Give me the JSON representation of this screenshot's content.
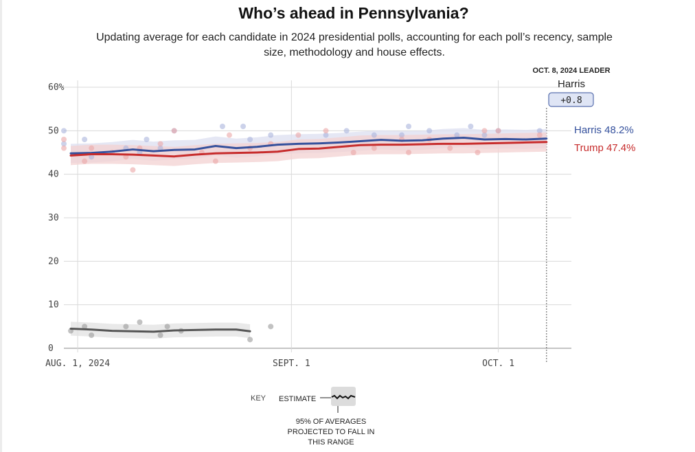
{
  "title": "Who’s ahead in Pennsylvania?",
  "subtitle": "Updating average for each candidate in 2024 presidential polls, accounting for each poll’s recency, sample size, methodology and house effects.",
  "leader_box": {
    "date_label": "OCT. 8, 2024 LEADER",
    "name": "Harris",
    "margin": "+0.8"
  },
  "colors": {
    "harris": "#34509c",
    "trump": "#c72c2c",
    "other": "#555555",
    "harris_band": "#dcdff0",
    "trump_band": "#f3d1d1",
    "other_band": "#e2e2e2",
    "grid": "#d9d9d9",
    "badge_bg": "#dfe5f5",
    "badge_border": "#34509c"
  },
  "key": {
    "key_label": "KEY",
    "estimate_label": "ESTIMATE",
    "range_label_line1": "95% OF AVERAGES",
    "range_label_line2": "PROJECTED TO FALL IN",
    "range_label_line3": "THIS RANGE"
  },
  "chart_data": {
    "type": "line",
    "title": "Who’s ahead in Pennsylvania?",
    "xlabel": "",
    "ylabel": "",
    "x_domain": [
      "2024-07-30",
      "2024-10-12"
    ],
    "ylim": [
      0,
      60
    ],
    "y_ticks": [
      0,
      10,
      20,
      30,
      40,
      50,
      60
    ],
    "y_tick_labels": [
      "0",
      "10",
      "20",
      "30",
      "40",
      "50",
      "60%"
    ],
    "x_ticks": [
      {
        "date": "2024-08-01",
        "label": "AUG. 1, 2024"
      },
      {
        "date": "2024-09-01",
        "label": "SEPT. 1"
      },
      {
        "date": "2024-10-01",
        "label": "OCT. 1"
      }
    ],
    "marker_date": "2024-10-08",
    "series": [
      {
        "name": "Harris",
        "end_label": "Harris 48.2%",
        "final_value": 48.2,
        "band_halfwidth": 2.2,
        "points": [
          [
            "2024-07-31",
            44.8
          ],
          [
            "2024-08-03",
            44.9
          ],
          [
            "2024-08-06",
            45.2
          ],
          [
            "2024-08-09",
            45.7
          ],
          [
            "2024-08-12",
            45.3
          ],
          [
            "2024-08-15",
            45.6
          ],
          [
            "2024-08-18",
            45.7
          ],
          [
            "2024-08-21",
            46.5
          ],
          [
            "2024-08-24",
            46.0
          ],
          [
            "2024-08-27",
            46.3
          ],
          [
            "2024-08-30",
            46.8
          ],
          [
            "2024-09-02",
            47.0
          ],
          [
            "2024-09-05",
            47.1
          ],
          [
            "2024-09-08",
            47.3
          ],
          [
            "2024-09-11",
            47.6
          ],
          [
            "2024-09-14",
            47.9
          ],
          [
            "2024-09-17",
            47.7
          ],
          [
            "2024-09-20",
            47.8
          ],
          [
            "2024-09-23",
            48.2
          ],
          [
            "2024-09-26",
            48.4
          ],
          [
            "2024-09-29",
            48.0
          ],
          [
            "2024-10-02",
            48.1
          ],
          [
            "2024-10-05",
            48.0
          ],
          [
            "2024-10-08",
            48.2
          ]
        ]
      },
      {
        "name": "Trump",
        "end_label": "Trump 47.4%",
        "final_value": 47.4,
        "band_halfwidth": 2.2,
        "points": [
          [
            "2024-07-31",
            44.3
          ],
          [
            "2024-08-03",
            44.6
          ],
          [
            "2024-08-06",
            44.6
          ],
          [
            "2024-08-09",
            44.5
          ],
          [
            "2024-08-12",
            44.3
          ],
          [
            "2024-08-15",
            44.1
          ],
          [
            "2024-08-18",
            44.5
          ],
          [
            "2024-08-21",
            44.8
          ],
          [
            "2024-08-24",
            44.9
          ],
          [
            "2024-08-27",
            45.0
          ],
          [
            "2024-08-30",
            45.2
          ],
          [
            "2024-09-02",
            45.8
          ],
          [
            "2024-09-05",
            45.9
          ],
          [
            "2024-09-08",
            46.3
          ],
          [
            "2024-09-11",
            46.7
          ],
          [
            "2024-09-14",
            46.8
          ],
          [
            "2024-09-17",
            46.8
          ],
          [
            "2024-09-20",
            46.9
          ],
          [
            "2024-09-23",
            47.0
          ],
          [
            "2024-09-26",
            47.0
          ],
          [
            "2024-09-29",
            47.1
          ],
          [
            "2024-10-02",
            47.2
          ],
          [
            "2024-10-05",
            47.3
          ],
          [
            "2024-10-08",
            47.4
          ]
        ]
      },
      {
        "name": "Other",
        "end_label": "",
        "band_halfwidth": 1.6,
        "points": [
          [
            "2024-07-31",
            4.5
          ],
          [
            "2024-08-03",
            4.3
          ],
          [
            "2024-08-06",
            4.0
          ],
          [
            "2024-08-09",
            3.9
          ],
          [
            "2024-08-12",
            3.8
          ],
          [
            "2024-08-15",
            4.1
          ],
          [
            "2024-08-18",
            4.2
          ],
          [
            "2024-08-21",
            4.3
          ],
          [
            "2024-08-24",
            4.3
          ],
          [
            "2024-08-26",
            3.9
          ]
        ]
      }
    ],
    "polls": [
      {
        "series": "Harris",
        "points": [
          [
            "2024-07-30",
            50
          ],
          [
            "2024-07-30",
            47
          ],
          [
            "2024-08-02",
            48
          ],
          [
            "2024-08-03",
            44
          ],
          [
            "2024-08-08",
            46
          ],
          [
            "2024-08-10",
            45
          ],
          [
            "2024-08-11",
            48
          ],
          [
            "2024-08-13",
            46
          ],
          [
            "2024-08-15",
            50
          ],
          [
            "2024-08-22",
            51
          ],
          [
            "2024-08-25",
            51
          ],
          [
            "2024-08-26",
            48
          ],
          [
            "2024-08-29",
            49
          ],
          [
            "2024-09-06",
            49
          ],
          [
            "2024-09-09",
            50
          ],
          [
            "2024-09-13",
            49
          ],
          [
            "2024-09-17",
            49
          ],
          [
            "2024-09-18",
            51
          ],
          [
            "2024-09-21",
            50
          ],
          [
            "2024-09-25",
            49
          ],
          [
            "2024-09-27",
            51
          ],
          [
            "2024-09-29",
            49
          ],
          [
            "2024-10-01",
            50
          ],
          [
            "2024-10-07",
            50
          ]
        ]
      },
      {
        "series": "Trump",
        "points": [
          [
            "2024-07-30",
            48
          ],
          [
            "2024-07-30",
            46
          ],
          [
            "2024-08-02",
            43
          ],
          [
            "2024-08-03",
            46
          ],
          [
            "2024-08-06",
            45
          ],
          [
            "2024-08-08",
            44
          ],
          [
            "2024-08-09",
            41
          ],
          [
            "2024-08-10",
            46
          ],
          [
            "2024-08-13",
            47
          ],
          [
            "2024-08-15",
            50
          ],
          [
            "2024-08-19",
            45
          ],
          [
            "2024-08-21",
            43
          ],
          [
            "2024-08-23",
            49
          ],
          [
            "2024-08-26",
            46
          ],
          [
            "2024-08-29",
            47
          ],
          [
            "2024-09-02",
            49
          ],
          [
            "2024-09-06",
            50
          ],
          [
            "2024-09-10",
            45
          ],
          [
            "2024-09-13",
            46
          ],
          [
            "2024-09-17",
            48
          ],
          [
            "2024-09-18",
            45
          ],
          [
            "2024-09-21",
            48
          ],
          [
            "2024-09-24",
            46
          ],
          [
            "2024-09-28",
            45
          ],
          [
            "2024-09-29",
            50
          ],
          [
            "2024-10-01",
            50
          ],
          [
            "2024-10-07",
            49
          ]
        ]
      },
      {
        "series": "Other",
        "points": [
          [
            "2024-07-31",
            4
          ],
          [
            "2024-08-02",
            5
          ],
          [
            "2024-08-03",
            3
          ],
          [
            "2024-08-08",
            5
          ],
          [
            "2024-08-10",
            6
          ],
          [
            "2024-08-13",
            3
          ],
          [
            "2024-08-14",
            5
          ],
          [
            "2024-08-16",
            4
          ],
          [
            "2024-08-26",
            2
          ],
          [
            "2024-08-29",
            5
          ]
        ]
      }
    ]
  }
}
